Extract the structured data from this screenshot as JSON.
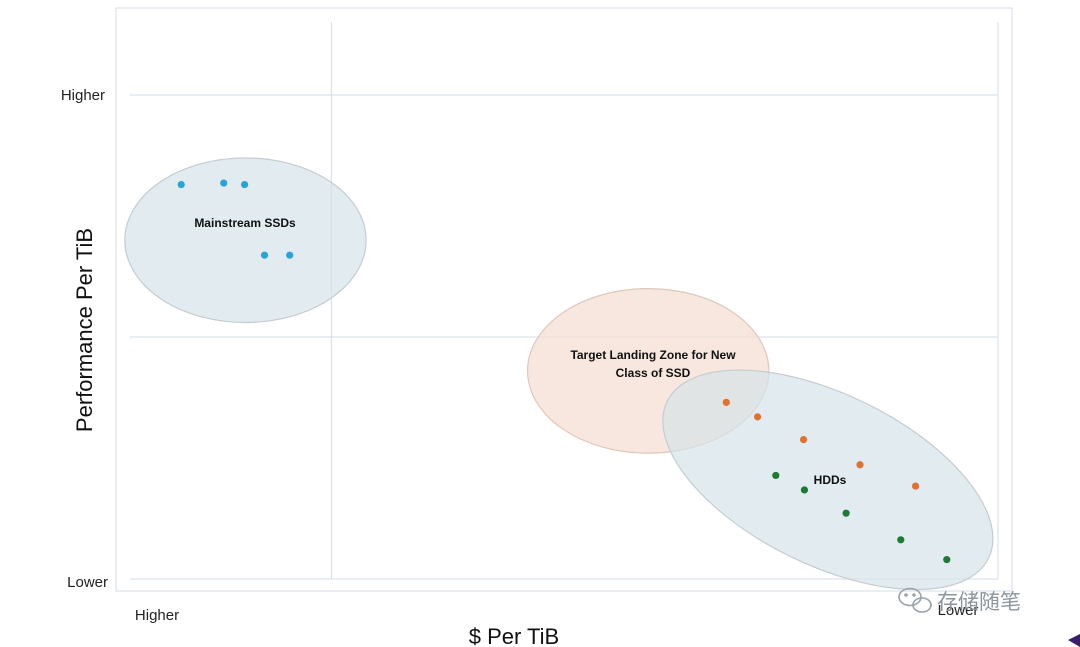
{
  "chart_data": {
    "type": "scatter",
    "title": "",
    "xlabel": "$ Per TiB",
    "ylabel": "Performance Per TiB",
    "xlim": [
      0,
      100
    ],
    "ylim": [
      0,
      100
    ],
    "x_ticks": [
      "Higher",
      "Lower"
    ],
    "y_ticks": [
      "Lower",
      "Higher"
    ],
    "grid": true,
    "zones": [
      {
        "name": "Mainstream SSDs",
        "label_lines": [
          "Mainstream SSDs"
        ],
        "cx": 13.3,
        "cy": 70,
        "rx": 13.9,
        "ry": 34,
        "fill": "#d6e2e8",
        "stroke": "#c4ccd2"
      },
      {
        "name": "Target Landing Zone for New Class of SSD",
        "label_lines": [
          "Target Landing Zone for New",
          "Class of SSD"
        ],
        "cx": 59.7,
        "cy": 43,
        "rx": 13.9,
        "ry": 34,
        "fill": "#f5ddd0",
        "stroke": "#ddc9bd"
      },
      {
        "name": "HDDs",
        "label_lines": [
          "HDDs"
        ],
        "cx": 80.4,
        "cy": 20.5,
        "rx": 20.6,
        "ry": 35.3,
        "rotate": 26,
        "fill": "#d6e2e8",
        "stroke": "#c4ccd2"
      }
    ],
    "series": [
      {
        "color": "#2aa3d8",
        "points": [
          [
            5.9,
            81.5
          ],
          [
            10.8,
            81.8
          ],
          [
            13.2,
            81.5
          ],
          [
            15.5,
            66.9
          ],
          [
            18.4,
            66.9
          ]
        ]
      },
      {
        "color": "#e2702f",
        "points": [
          [
            68.7,
            36.5
          ],
          [
            72.3,
            33.5
          ],
          [
            77.6,
            28.8
          ],
          [
            84.1,
            23.6
          ],
          [
            90.5,
            19.2
          ]
        ]
      },
      {
        "color": "#1e7a33",
        "points": [
          [
            74.4,
            21.4
          ],
          [
            77.7,
            18.4
          ],
          [
            82.5,
            13.6
          ],
          [
            88.8,
            8.1
          ],
          [
            94.1,
            4.0
          ]
        ]
      }
    ]
  },
  "watermark": {
    "text": "存储随笔"
  }
}
